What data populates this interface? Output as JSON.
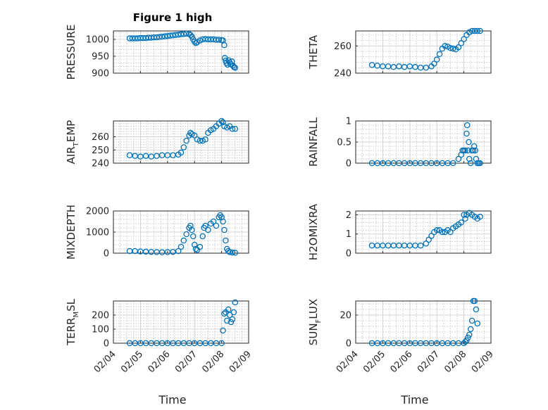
{
  "figure_title": "Figure 1 high",
  "xlabel": "Time",
  "x_tick_labels": [
    "02/04",
    "02/05",
    "02/06",
    "02/07",
    "02/08",
    "02/09"
  ],
  "chart_data": [
    {
      "id": "pressure",
      "type": "scatter",
      "title": "Figure 1 high",
      "ylabel": "PRESSURE",
      "ylabel_sub": "",
      "ylabel_rest": "",
      "xlim": [
        4,
        9
      ],
      "ylim": [
        900,
        1025
      ],
      "yticks": [
        900,
        950,
        1000
      ],
      "ytick_labels": [
        "900",
        "950",
        "1000"
      ],
      "x": [
        4.6,
        4.7,
        4.8,
        4.9,
        5.0,
        5.1,
        5.2,
        5.3,
        5.4,
        5.5,
        5.6,
        5.7,
        5.8,
        5.9,
        6.0,
        6.1,
        6.2,
        6.3,
        6.4,
        6.5,
        6.6,
        6.7,
        6.8,
        6.85,
        6.9,
        6.95,
        7.0,
        7.05,
        7.1,
        7.2,
        7.3,
        7.4,
        7.5,
        7.6,
        7.7,
        7.8,
        7.9,
        8.0,
        8.05,
        8.1,
        8.12,
        8.15,
        8.18,
        8.22,
        8.26,
        8.3,
        8.34,
        8.38,
        8.42,
        8.46,
        8.5
      ],
      "y": [
        1003,
        1003,
        1003,
        1003,
        1004,
        1004,
        1004,
        1005,
        1005,
        1006,
        1006,
        1007,
        1008,
        1009,
        1010,
        1011,
        1012,
        1013,
        1014,
        1015,
        1016,
        1017,
        1016,
        1013,
        1008,
        1000,
        993,
        989,
        992,
        997,
        1000,
        1001,
        1000,
        1000,
        1000,
        999,
        999,
        998,
        997,
        983,
        945,
        937,
        930,
        925,
        938,
        932,
        926,
        935,
        922,
        918,
        916
      ]
    },
    {
      "id": "theta",
      "type": "scatter",
      "ylabel": "THETA",
      "ylabel_sub": "",
      "ylabel_rest": "",
      "xlim": [
        4,
        9
      ],
      "ylim": [
        240,
        271
      ],
      "yticks": [
        240,
        260
      ],
      "ytick_labels": [
        "240",
        "260"
      ],
      "x": [
        4.6,
        4.8,
        5.0,
        5.2,
        5.4,
        5.6,
        5.8,
        6.0,
        6.2,
        6.4,
        6.6,
        6.8,
        6.9,
        7.0,
        7.1,
        7.2,
        7.3,
        7.4,
        7.5,
        7.6,
        7.7,
        7.8,
        7.9,
        8.0,
        8.1,
        8.2,
        8.3,
        8.4,
        8.5,
        8.6
      ],
      "y": [
        246,
        245.5,
        245,
        245,
        244.5,
        245,
        244.5,
        245,
        244.5,
        244,
        244,
        245,
        247,
        250,
        254,
        258,
        260,
        259.5,
        258.5,
        258,
        257.5,
        259,
        262,
        265,
        268,
        270,
        271,
        271,
        271,
        271
      ]
    },
    {
      "id": "air_temp",
      "type": "scatter",
      "ylabel": "AIR",
      "ylabel_sub": "T",
      "ylabel_rest": "EMP",
      "xlim": [
        4,
        9
      ],
      "ylim": [
        240,
        272
      ],
      "yticks": [
        240,
        250,
        260
      ],
      "ytick_labels": [
        "240",
        "250",
        "260"
      ],
      "x": [
        4.6,
        4.8,
        5.0,
        5.2,
        5.4,
        5.6,
        5.8,
        6.0,
        6.2,
        6.4,
        6.5,
        6.6,
        6.7,
        6.8,
        6.85,
        6.9,
        7.0,
        7.1,
        7.2,
        7.3,
        7.4,
        7.5,
        7.6,
        7.7,
        7.8,
        7.9,
        8.0,
        8.05,
        8.1,
        8.2,
        8.3,
        8.4,
        8.5
      ],
      "y": [
        246,
        245.5,
        245,
        245.5,
        245,
        245.5,
        246,
        246,
        246,
        246.5,
        248,
        252,
        257,
        261,
        263,
        262,
        261,
        258,
        257,
        257,
        258,
        263,
        265,
        266,
        268,
        270,
        272,
        271,
        268,
        267,
        268,
        266,
        266
      ]
    },
    {
      "id": "rainfall",
      "type": "scatter",
      "ylabel": "RAINFALL",
      "ylabel_sub": "",
      "ylabel_rest": "",
      "xlim": [
        4,
        9
      ],
      "ylim": [
        0,
        1
      ],
      "yticks": [
        0,
        0.5,
        1
      ],
      "ytick_labels": [
        "0",
        "0.5",
        "1"
      ],
      "x": [
        4.6,
        4.8,
        5.0,
        5.2,
        5.4,
        5.6,
        5.8,
        6.0,
        6.2,
        6.4,
        6.6,
        6.8,
        7.0,
        7.2,
        7.4,
        7.6,
        7.8,
        7.9,
        7.95,
        8.0,
        8.05,
        8.1,
        8.12,
        8.15,
        8.18,
        8.2,
        8.25,
        8.3,
        8.35,
        8.38,
        8.42,
        8.45,
        8.5,
        8.55,
        8.6
      ],
      "y": [
        0,
        0,
        0,
        0,
        0,
        0,
        0,
        0,
        0,
        0,
        0,
        0,
        0,
        0,
        0,
        0,
        0.1,
        0.2,
        0.3,
        0.3,
        0.3,
        0.7,
        0.9,
        0.3,
        0.5,
        0.1,
        0,
        0.3,
        0.3,
        0.4,
        0.3,
        0.1,
        0,
        0,
        0
      ]
    },
    {
      "id": "mixdepth",
      "type": "scatter",
      "ylabel": "MIXDEPTH",
      "ylabel_sub": "",
      "ylabel_rest": "",
      "xlim": [
        4,
        9
      ],
      "ylim": [
        0,
        2000
      ],
      "yticks": [
        0,
        1000,
        2000
      ],
      "ytick_labels": [
        "0",
        "1000",
        "2000"
      ],
      "x": [
        4.6,
        4.8,
        5.0,
        5.2,
        5.4,
        5.6,
        5.8,
        6.0,
        6.2,
        6.4,
        6.5,
        6.6,
        6.7,
        6.8,
        6.85,
        6.9,
        6.95,
        7.0,
        7.05,
        7.1,
        7.2,
        7.3,
        7.35,
        7.4,
        7.5,
        7.6,
        7.7,
        7.8,
        7.9,
        7.95,
        8.0,
        8.05,
        8.1,
        8.15,
        8.2,
        8.25,
        8.3,
        8.4,
        8.5
      ],
      "y": [
        100,
        100,
        80,
        70,
        60,
        50,
        40,
        50,
        60,
        100,
        300,
        600,
        900,
        1200,
        1300,
        1100,
        800,
        400,
        200,
        150,
        300,
        800,
        1200,
        1300,
        1100,
        1400,
        1500,
        1300,
        1700,
        1800,
        1700,
        1500,
        1100,
        600,
        200,
        100,
        50,
        30,
        20
      ]
    },
    {
      "id": "h2omixra",
      "type": "scatter",
      "ylabel": "H2OMIXRA",
      "ylabel_sub": "",
      "ylabel_rest": "",
      "xlim": [
        4,
        9
      ],
      "ylim": [
        0,
        2.2
      ],
      "yticks": [
        0,
        1,
        2
      ],
      "ytick_labels": [
        "0",
        "1",
        "2"
      ],
      "x": [
        4.6,
        4.8,
        5.0,
        5.2,
        5.4,
        5.6,
        5.8,
        6.0,
        6.2,
        6.4,
        6.6,
        6.7,
        6.8,
        6.9,
        7.0,
        7.1,
        7.2,
        7.3,
        7.4,
        7.5,
        7.6,
        7.7,
        7.8,
        7.9,
        8.0,
        8.05,
        8.1,
        8.2,
        8.3,
        8.4,
        8.5,
        8.6
      ],
      "y": [
        0.4,
        0.4,
        0.4,
        0.4,
        0.4,
        0.4,
        0.4,
        0.4,
        0.4,
        0.4,
        0.5,
        0.7,
        0.9,
        1.1,
        1.2,
        1.2,
        1.1,
        1.1,
        1.2,
        1.1,
        1.3,
        1.4,
        1.5,
        1.6,
        2.0,
        1.8,
        2.0,
        2.1,
        2.0,
        1.9,
        1.8,
        1.9
      ]
    },
    {
      "id": "terr_msl",
      "type": "scatter",
      "ylabel": "TERR",
      "ylabel_sub": "M",
      "ylabel_rest": "SL",
      "xlim": [
        4,
        9
      ],
      "ylim": [
        0,
        300
      ],
      "yticks": [
        0,
        100,
        200
      ],
      "ytick_labels": [
        "0",
        "100",
        "200"
      ],
      "x": [
        4.6,
        4.8,
        5.0,
        5.2,
        5.4,
        5.6,
        5.8,
        6.0,
        6.2,
        6.4,
        6.6,
        6.8,
        7.0,
        7.2,
        7.4,
        7.6,
        7.8,
        8.0,
        8.05,
        8.1,
        8.15,
        8.2,
        8.25,
        8.3,
        8.35,
        8.4,
        8.45,
        8.5
      ],
      "y": [
        0,
        0,
        0,
        0,
        0,
        0,
        0,
        0,
        0,
        0,
        0,
        0,
        0,
        0,
        0,
        0,
        0,
        0,
        90,
        210,
        220,
        160,
        240,
        200,
        150,
        170,
        220,
        290
      ]
    },
    {
      "id": "sun_flux",
      "type": "scatter",
      "ylabel": "SUN",
      "ylabel_sub": "F",
      "ylabel_rest": "LUX",
      "xlim": [
        4,
        9
      ],
      "ylim": [
        0,
        30
      ],
      "yticks": [
        0,
        20
      ],
      "ytick_labels": [
        "0",
        "20"
      ],
      "x": [
        4.6,
        4.8,
        5.0,
        5.2,
        5.4,
        5.6,
        5.8,
        6.0,
        6.2,
        6.4,
        6.6,
        6.8,
        7.0,
        7.2,
        7.4,
        7.6,
        7.8,
        8.0,
        8.05,
        8.1,
        8.15,
        8.2,
        8.25,
        8.3,
        8.35,
        8.4,
        8.45,
        8.5
      ],
      "y": [
        0,
        0,
        0,
        0,
        0,
        0,
        0,
        0,
        0,
        0,
        0,
        0,
        0,
        0,
        0,
        0,
        0,
        0,
        1,
        2,
        4,
        6,
        10,
        16,
        30,
        30,
        24,
        14
      ]
    }
  ]
}
